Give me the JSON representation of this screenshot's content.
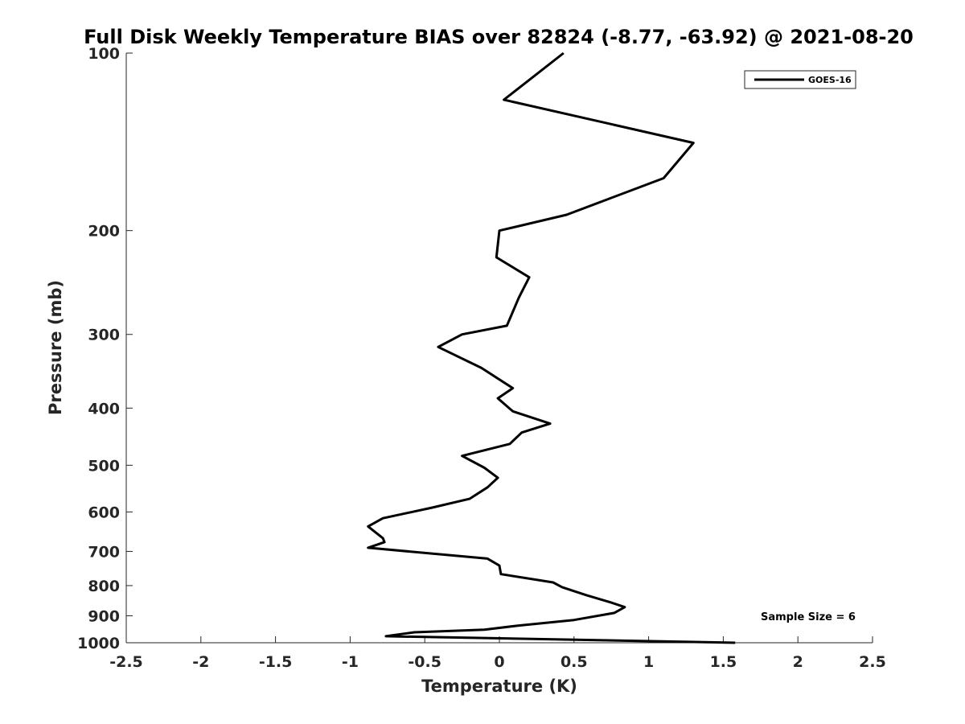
{
  "chart_data": {
    "type": "line",
    "title": "Full Disk Weekly Temperature BIAS over 82824 (-8.77, -63.92) @ 2021-08-20",
    "xlabel": "Temperature (K)",
    "ylabel": "Pressure (mb)",
    "xlim": [
      -2.5,
      2.5
    ],
    "ylim": [
      100,
      1000
    ],
    "y_scale": "log",
    "y_reversed": true,
    "grid": false,
    "x_ticks": [
      -2.5,
      -2,
      -1.5,
      -1,
      -0.5,
      0,
      0.5,
      1,
      1.5,
      2,
      2.5
    ],
    "x_tick_labels": [
      "-2.5",
      "-2",
      "-1.5",
      "-1",
      "-0.5",
      "0",
      "0.5",
      "1",
      "1.5",
      "2",
      "2.5"
    ],
    "y_ticks": [
      100,
      200,
      300,
      400,
      500,
      600,
      700,
      800,
      900,
      1000
    ],
    "y_tick_labels": [
      "100",
      "200",
      "300",
      "400",
      "500",
      "600",
      "700",
      "800",
      "900",
      "1000"
    ],
    "legend": {
      "position": "top-right",
      "entries": [
        "GOES-16"
      ]
    },
    "annotations": [
      {
        "text": "Sample Size = 6",
        "position": "bottom-right"
      }
    ],
    "series": [
      {
        "name": "GOES-16",
        "color": "#000000",
        "points": [
          [
            0.43,
            100
          ],
          [
            0.03,
            120
          ],
          [
            1.3,
            142
          ],
          [
            1.1,
            163
          ],
          [
            0.45,
            188
          ],
          [
            0.0,
            200
          ],
          [
            -0.02,
            222
          ],
          [
            0.2,
            240
          ],
          [
            0.13,
            260
          ],
          [
            0.05,
            290
          ],
          [
            -0.25,
            300
          ],
          [
            -0.41,
            315
          ],
          [
            -0.12,
            342
          ],
          [
            0.09,
            370
          ],
          [
            -0.01,
            385
          ],
          [
            0.09,
            405
          ],
          [
            0.34,
            425
          ],
          [
            0.15,
            440
          ],
          [
            0.07,
            460
          ],
          [
            -0.25,
            482
          ],
          [
            -0.1,
            505
          ],
          [
            -0.01,
            525
          ],
          [
            -0.08,
            545
          ],
          [
            -0.2,
            570
          ],
          [
            -0.45,
            590
          ],
          [
            -0.78,
            615
          ],
          [
            -0.88,
            635
          ],
          [
            -0.78,
            665
          ],
          [
            -0.77,
            675
          ],
          [
            -0.88,
            690
          ],
          [
            -0.08,
            720
          ],
          [
            0.0,
            740
          ],
          [
            0.01,
            765
          ],
          [
            0.36,
            790
          ],
          [
            0.42,
            805
          ],
          [
            0.58,
            830
          ],
          [
            0.75,
            855
          ],
          [
            0.84,
            870
          ],
          [
            0.77,
            890
          ],
          [
            0.5,
            915
          ],
          [
            0.13,
            935
          ],
          [
            -0.1,
            950
          ],
          [
            -0.57,
            960
          ],
          [
            -0.76,
            975
          ],
          [
            1.58,
            1000
          ]
        ]
      }
    ]
  }
}
